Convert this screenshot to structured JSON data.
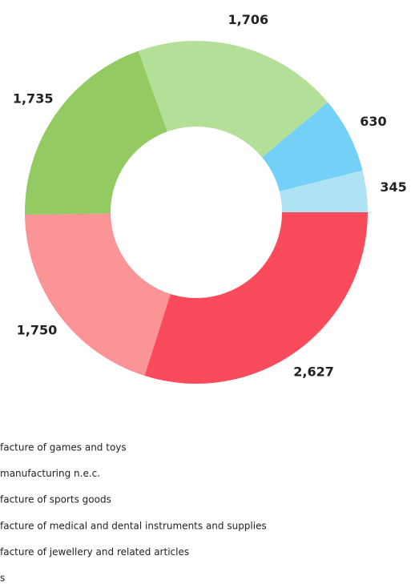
{
  "chart_data": {
    "type": "donut",
    "labels": [
      "facture of games and toys",
      "manufacturing n.e.c.",
      "facture of sports goods",
      "facture of medical and dental instruments and supplies",
      "facture of jewellery and related articles",
      "s"
    ],
    "values": [
      2627,
      1750,
      1735,
      1706,
      630,
      345
    ],
    "value_labels": [
      "2,627",
      "1,750",
      "1,735",
      "1,706",
      "630",
      "345"
    ],
    "colors": [
      "#f94b5c",
      "#fa9497",
      "#93cb62",
      "#b3df98",
      "#73d1f7",
      "#afe3f3"
    ]
  }
}
